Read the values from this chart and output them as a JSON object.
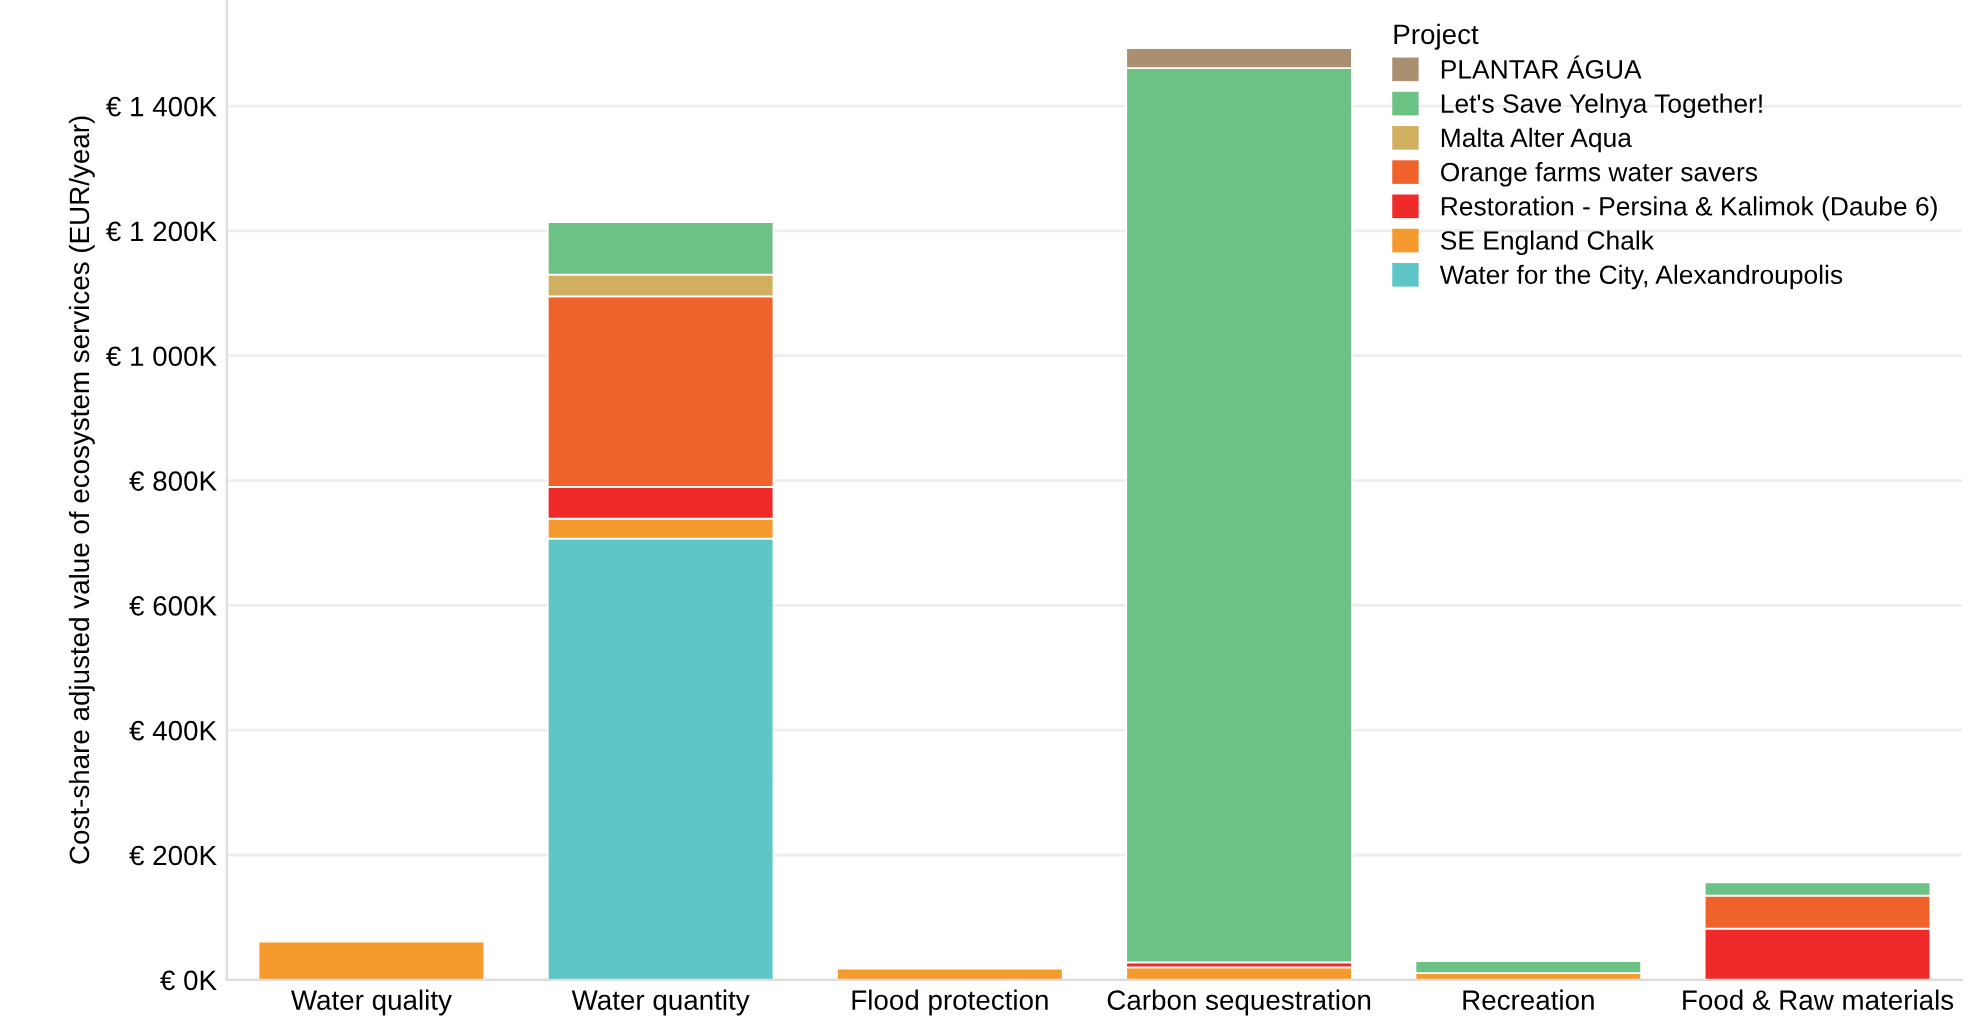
{
  "chart_data": {
    "type": "bar",
    "stacked": true,
    "categories": [
      "Water quality",
      "Water quantity",
      "Flood protection",
      "Carbon sequestration",
      "Recreation",
      "Food & Raw materials"
    ],
    "ylabel": "Cost-share adjusted value of ecosystem services (EUR/year)",
    "legend_title": "Project",
    "legend": "top right",
    "grid": "y",
    "ylim": [
      0,
      1570
    ],
    "yticks": [
      {
        "value": 0,
        "label": "€ 0K"
      },
      {
        "value": 200,
        "label": "€ 200K"
      },
      {
        "value": 400,
        "label": "€ 400K"
      },
      {
        "value": 600,
        "label": "€ 600K"
      },
      {
        "value": 800,
        "label": "€ 800K"
      },
      {
        "value": 1000,
        "label": "€ 1 000K"
      },
      {
        "value": 1200,
        "label": "€ 1 200K"
      },
      {
        "value": 1400,
        "label": "€ 1 400K"
      }
    ],
    "series": [
      {
        "name": "Water for the City, Alexandroupolis",
        "color": "#5fc6c8",
        "values": [
          null,
          707,
          null,
          null,
          null,
          null
        ]
      },
      {
        "name": "SE England Chalk",
        "color": "#f59a2e",
        "values": [
          61,
          32,
          18,
          20,
          11,
          null
        ]
      },
      {
        "name": "Restoration - Persina & Kalimok (Daube 6)",
        "color": "#ee2a2a",
        "values": [
          null,
          51,
          null,
          8,
          null,
          82
        ]
      },
      {
        "name": "Orange farms water savers",
        "color": "#f0622c",
        "values": [
          null,
          305,
          null,
          null,
          null,
          53
        ]
      },
      {
        "name": "Malta Alter Aqua",
        "color": "#d0b060",
        "values": [
          null,
          35,
          null,
          null,
          null,
          null
        ]
      },
      {
        "name": "Let's Save Yelnya Together!",
        "color": "#6cc284",
        "values": [
          null,
          84,
          null,
          1433,
          19,
          21
        ]
      },
      {
        "name": "PLANTAR ÁGUA",
        "color": "#a89070",
        "values": [
          null,
          null,
          null,
          32,
          null,
          null
        ]
      }
    ]
  }
}
